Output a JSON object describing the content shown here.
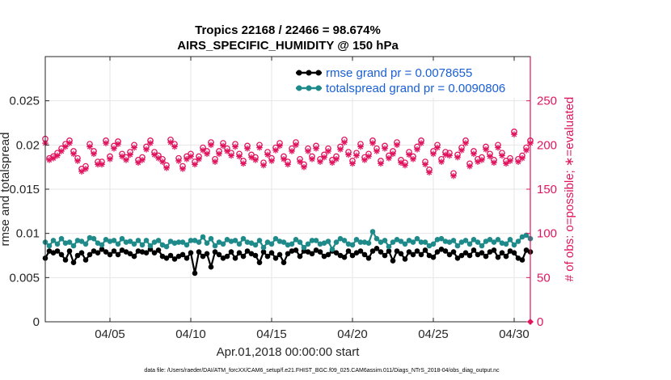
{
  "chart_data": {
    "type": "line",
    "title": "Tropics 22168 / 22466 = 98.674%",
    "subtitle": "AIRS_SPECIFIC_HUMIDITY @ 150 hPa",
    "xlabel": "Apr.01,2018 00:00:00 start",
    "ylabel_left": "rmse and totalspread",
    "ylabel_right": "# of obs: o=possible; ∗=evaluated",
    "footer": "data file: /Users/raeder/DAI/ATM_forcXX/CAM6_setup/f.e21.FHIST_BGC.f09_025.CAM6assim.011/Diags_NTrS_2018-04/obs_diag_output.nc",
    "xlim": [
      1.0,
      31.0
    ],
    "ylim_left": [
      0,
      0.03
    ],
    "ylim_right": [
      0,
      300
    ],
    "x_ticks": [
      5,
      10,
      15,
      20,
      25,
      30
    ],
    "x_tick_labels": [
      "04/05",
      "04/10",
      "04/15",
      "04/20",
      "04/25",
      "04/30"
    ],
    "y_left_ticks": [
      0,
      0.005,
      0.01,
      0.015,
      0.02,
      0.025
    ],
    "y_left_tick_labels": [
      "0",
      "0.005",
      "0.01",
      "0.015",
      "0.02",
      "0.025"
    ],
    "y_right_ticks": [
      0,
      50,
      100,
      150,
      200,
      250
    ],
    "y_right_tick_labels": [
      "0",
      "50",
      "100",
      "150",
      "200",
      "250"
    ],
    "grid": true,
    "legend_position": "top-right",
    "series": [
      {
        "name": "rmse grand pr = 0.0078655",
        "axis": "left",
        "color": "#000000",
        "marker": "filled-circle",
        "start": 1.0,
        "step": 0.25,
        "values": [
          0.0072,
          0.008,
          0.0078,
          0.008,
          0.0076,
          0.007,
          0.008,
          0.0067,
          0.0075,
          0.0078,
          0.007,
          0.0076,
          0.008,
          0.0078,
          0.0082,
          0.0079,
          0.0076,
          0.008,
          0.0076,
          0.0081,
          0.0079,
          0.0077,
          0.0074,
          0.008,
          0.0079,
          0.0078,
          0.0082,
          0.0078,
          0.0081,
          0.0074,
          0.0072,
          0.0075,
          0.0071,
          0.0074,
          0.0076,
          0.0072,
          0.0078,
          0.0055,
          0.0079,
          0.0074,
          0.0077,
          0.0062,
          0.0079,
          0.0076,
          0.0072,
          0.0074,
          0.0079,
          0.0072,
          0.0078,
          0.0074,
          0.008,
          0.0077,
          0.0075,
          0.0067,
          0.0079,
          0.0074,
          0.0078,
          0.0072,
          0.0076,
          0.0067,
          0.0077,
          0.008,
          0.0081,
          0.0074,
          0.008,
          0.0079,
          0.0077,
          0.0081,
          0.0079,
          0.0074,
          0.0076,
          0.008,
          0.0078,
          0.0075,
          0.0073,
          0.008,
          0.0075,
          0.0078,
          0.008,
          0.0076,
          0.0072,
          0.008,
          0.0083,
          0.0079,
          0.0075,
          0.008,
          0.0069,
          0.008,
          0.0077,
          0.0071,
          0.0079,
          0.0076,
          0.008,
          0.0076,
          0.0081,
          0.0075,
          0.0073,
          0.0079,
          0.0082,
          0.008,
          0.0076,
          0.0079,
          0.0072,
          0.0075,
          0.0078,
          0.0075,
          0.0081,
          0.0076,
          0.0078,
          0.0074,
          0.0079,
          0.0081,
          0.0073,
          0.0078,
          0.0074,
          0.008,
          0.0078,
          0.0072,
          0.007,
          0.0081,
          0.0079
        ]
      },
      {
        "name": "totalspread grand pr = 0.0090806",
        "axis": "left",
        "color": "#1f8a8a",
        "marker": "filled-circle",
        "start": 1.0,
        "step": 0.25,
        "values": [
          0.009,
          0.0086,
          0.0092,
          0.0088,
          0.0094,
          0.0089,
          0.009,
          0.0086,
          0.0092,
          0.0091,
          0.0088,
          0.0095,
          0.0094,
          0.0089,
          0.0087,
          0.0093,
          0.0091,
          0.0092,
          0.0088,
          0.0094,
          0.009,
          0.0091,
          0.0088,
          0.0092,
          0.0087,
          0.0092,
          0.0086,
          0.009,
          0.0092,
          0.0087,
          0.0085,
          0.0091,
          0.0089,
          0.009,
          0.009,
          0.0087,
          0.0092,
          0.0092,
          0.009,
          0.0096,
          0.0089,
          0.0094,
          0.0086,
          0.009,
          0.0088,
          0.0093,
          0.0091,
          0.0092,
          0.0088,
          0.0094,
          0.009,
          0.0089,
          0.0087,
          0.0092,
          0.0084,
          0.009,
          0.0088,
          0.0094,
          0.0091,
          0.009,
          0.0087,
          0.0088,
          0.0093,
          0.009,
          0.0084,
          0.0088,
          0.0092,
          0.0092,
          0.0088,
          0.0089,
          0.0091,
          0.0082,
          0.009,
          0.0094,
          0.0092,
          0.0088,
          0.0087,
          0.0093,
          0.009,
          0.009,
          0.0089,
          0.0102,
          0.0094,
          0.009,
          0.0092,
          0.0085,
          0.009,
          0.0093,
          0.0091,
          0.0088,
          0.0092,
          0.009,
          0.0094,
          0.009,
          0.009,
          0.0086,
          0.0088,
          0.0093,
          0.0094,
          0.0091,
          0.009,
          0.0092,
          0.0086,
          0.009,
          0.0092,
          0.0088,
          0.0093,
          0.009,
          0.0086,
          0.0091,
          0.0093,
          0.009,
          0.0093,
          0.0089,
          0.0088,
          0.0093,
          0.0087,
          0.0091,
          0.0096,
          0.0098,
          0.0094
        ]
      },
      {
        "name": "# of obs possible",
        "axis": "right",
        "color": "#e0155f",
        "marker": "open-circle",
        "start": 1.0,
        "step": 0.25,
        "values": [
          207,
          185,
          187,
          191,
          196,
          201,
          205,
          193,
          185,
          173,
          176,
          201,
          193,
          181,
          181,
          205,
          187,
          199,
          204,
          190,
          186,
          192,
          200,
          183,
          186,
          198,
          205,
          192,
          188,
          184,
          177,
          206,
          201,
          185,
          176,
          187,
          190,
          181,
          187,
          197,
          193,
          203,
          184,
          193,
          202,
          196,
          191,
          201,
          190,
          182,
          199,
          189,
          186,
          200,
          180,
          192,
          185,
          197,
          202,
          187,
          181,
          196,
          203,
          184,
          178,
          196,
          187,
          199,
          184,
          189,
          196,
          183,
          187,
          198,
          206,
          192,
          182,
          191,
          201,
          186,
          190,
          205,
          196,
          182,
          199,
          188,
          193,
          203,
          183,
          180,
          192,
          187,
          198,
          205,
          181,
          172,
          193,
          200,
          184,
          192,
          191,
          168,
          189,
          197,
          205,
          179,
          193,
          184,
          186,
          198,
          190,
          183,
          200,
          191,
          182,
          185,
          215,
          184,
          188,
          197,
          205
        ]
      },
      {
        "name": "# of obs evaluated",
        "axis": "right",
        "color": "#e0155f",
        "marker": "asterisk",
        "start": 1.0,
        "step": 0.25,
        "values": [
          202,
          183,
          185,
          188,
          193,
          198,
          202,
          190,
          182,
          170,
          173,
          198,
          190,
          178,
          178,
          202,
          184,
          196,
          201,
          187,
          183,
          189,
          197,
          180,
          183,
          195,
          202,
          189,
          185,
          181,
          174,
          203,
          198,
          182,
          173,
          184,
          187,
          178,
          184,
          194,
          190,
          200,
          181,
          190,
          199,
          193,
          188,
          198,
          187,
          179,
          196,
          186,
          183,
          197,
          177,
          189,
          182,
          194,
          199,
          184,
          178,
          193,
          200,
          181,
          175,
          193,
          184,
          196,
          181,
          186,
          193,
          180,
          184,
          195,
          203,
          189,
          179,
          188,
          198,
          183,
          187,
          202,
          193,
          179,
          196,
          185,
          190,
          200,
          180,
          177,
          189,
          184,
          195,
          202,
          178,
          169,
          190,
          197,
          181,
          189,
          188,
          165,
          186,
          194,
          202,
          176,
          190,
          181,
          183,
          195,
          187,
          180,
          197,
          188,
          179,
          182,
          212,
          181,
          185,
          194,
          202
        ]
      }
    ]
  }
}
